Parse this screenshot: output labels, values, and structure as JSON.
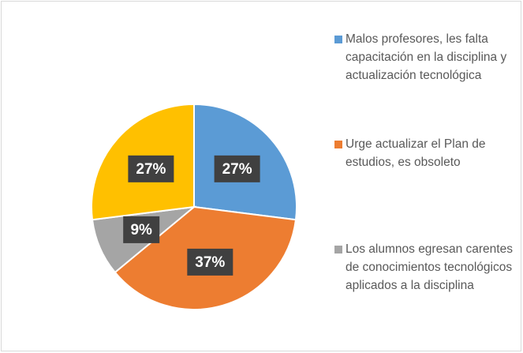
{
  "chart_data": {
    "type": "pie",
    "categories": [
      "Malos profesores, les falta capacitación en la disciplina y actualización tecnológica",
      "Urge actualizar el Plan de estudios, es obsoleto",
      "Los alumnos egresan carentes de conocimientos tecnológicos aplicados a la disciplina",
      null
    ],
    "values": [
      27,
      37,
      9,
      27
    ],
    "value_labels": [
      "27%",
      "37%",
      "9%",
      "27%"
    ],
    "colors": [
      "#5b9bd5",
      "#ed7d31",
      "#a5a5a5",
      "#ffc000"
    ]
  }
}
